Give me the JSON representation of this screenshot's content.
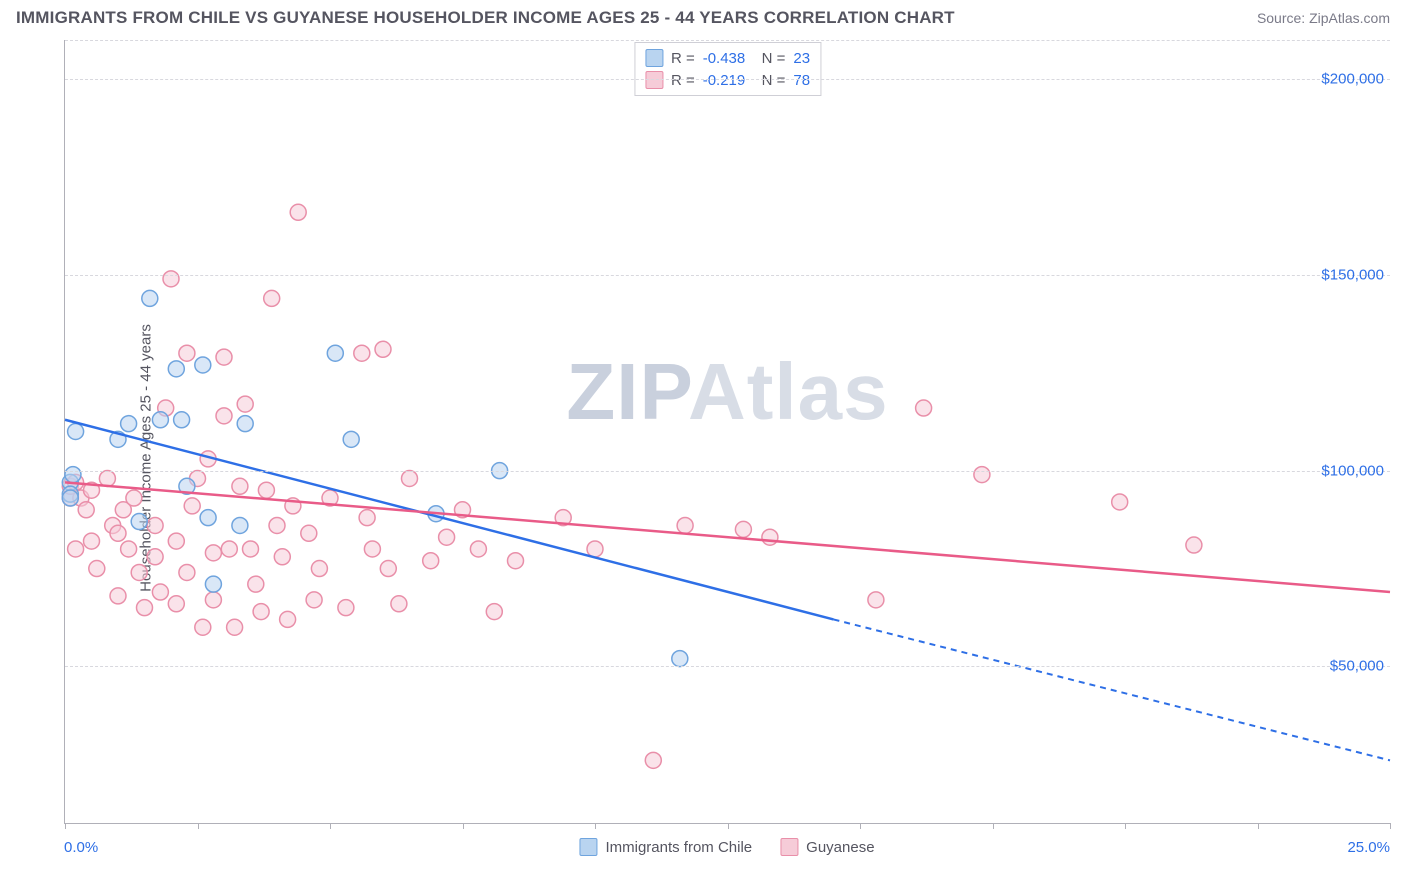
{
  "title": "IMMIGRANTS FROM CHILE VS GUYANESE HOUSEHOLDER INCOME AGES 25 - 44 YEARS CORRELATION CHART",
  "source": "Source: ZipAtlas.com",
  "ylabel": "Householder Income Ages 25 - 44 years",
  "watermark_a": "ZIP",
  "watermark_b": "Atlas",
  "chart": {
    "type": "scatter",
    "xlim": [
      0,
      25
    ],
    "ylim": [
      10000,
      210000
    ],
    "x_tick_positions": [
      0,
      2.5,
      5,
      7.5,
      10,
      12.5,
      15,
      17.5,
      20,
      22.5,
      25
    ],
    "x_tick_labels": {
      "min": "0.0%",
      "max": "25.0%"
    },
    "y_ticks": [
      50000,
      100000,
      150000,
      200000
    ],
    "y_tick_labels": [
      "$50,000",
      "$100,000",
      "$150,000",
      "$200,000"
    ],
    "grid_color": "#d8d8de",
    "background_color": "#ffffff",
    "marker_radius": 8,
    "marker_stroke_width": 1.5,
    "line_width": 2.5,
    "series": [
      {
        "name": "Immigrants from Chile",
        "fill": "#b9d4f0",
        "stroke": "#6fa4de",
        "line_color": "#2e6fe6",
        "R": "-0.438",
        "N": "23",
        "points": [
          [
            0.1,
            97000
          ],
          [
            0.1,
            94000
          ],
          [
            0.1,
            93000
          ],
          [
            0.15,
            99000
          ],
          [
            0.2,
            110000
          ],
          [
            1.0,
            108000
          ],
          [
            1.2,
            112000
          ],
          [
            1.4,
            87000
          ],
          [
            1.6,
            144000
          ],
          [
            1.8,
            113000
          ],
          [
            2.1,
            126000
          ],
          [
            2.2,
            113000
          ],
          [
            2.3,
            96000
          ],
          [
            2.6,
            127000
          ],
          [
            2.7,
            88000
          ],
          [
            2.8,
            71000
          ],
          [
            3.3,
            86000
          ],
          [
            3.4,
            112000
          ],
          [
            5.1,
            130000
          ],
          [
            5.4,
            108000
          ],
          [
            7.0,
            89000
          ],
          [
            8.2,
            100000
          ],
          [
            11.6,
            52000
          ]
        ],
        "regression": {
          "x1": 0,
          "y1": 113000,
          "x2": 14.5,
          "y2": 62000,
          "x_extend": 25,
          "y_extend": 26000
        }
      },
      {
        "name": "Guyanese",
        "fill": "#f6ccd8",
        "stroke": "#e98fa9",
        "line_color": "#e95b88",
        "R": "-0.219",
        "N": "78",
        "points": [
          [
            0.1,
            93000
          ],
          [
            0.1,
            96000
          ],
          [
            0.2,
            97000
          ],
          [
            0.2,
            80000
          ],
          [
            0.3,
            93000
          ],
          [
            0.4,
            90000
          ],
          [
            0.5,
            95000
          ],
          [
            0.5,
            82000
          ],
          [
            0.6,
            75000
          ],
          [
            0.8,
            98000
          ],
          [
            0.9,
            86000
          ],
          [
            1.0,
            84000
          ],
          [
            1.0,
            68000
          ],
          [
            1.1,
            90000
          ],
          [
            1.2,
            80000
          ],
          [
            1.3,
            93000
          ],
          [
            1.4,
            74000
          ],
          [
            1.5,
            65000
          ],
          [
            1.7,
            86000
          ],
          [
            1.7,
            78000
          ],
          [
            1.8,
            69000
          ],
          [
            1.9,
            116000
          ],
          [
            2.0,
            149000
          ],
          [
            2.1,
            82000
          ],
          [
            2.1,
            66000
          ],
          [
            2.3,
            74000
          ],
          [
            2.3,
            130000
          ],
          [
            2.4,
            91000
          ],
          [
            2.5,
            98000
          ],
          [
            2.6,
            60000
          ],
          [
            2.7,
            103000
          ],
          [
            2.8,
            79000
          ],
          [
            2.8,
            67000
          ],
          [
            3.0,
            129000
          ],
          [
            3.0,
            114000
          ],
          [
            3.1,
            80000
          ],
          [
            3.2,
            60000
          ],
          [
            3.3,
            96000
          ],
          [
            3.4,
            117000
          ],
          [
            3.5,
            80000
          ],
          [
            3.6,
            71000
          ],
          [
            3.7,
            64000
          ],
          [
            3.8,
            95000
          ],
          [
            3.9,
            144000
          ],
          [
            4.0,
            86000
          ],
          [
            4.1,
            78000
          ],
          [
            4.2,
            62000
          ],
          [
            4.3,
            91000
          ],
          [
            4.4,
            166000
          ],
          [
            4.6,
            84000
          ],
          [
            4.7,
            67000
          ],
          [
            4.8,
            75000
          ],
          [
            5.0,
            93000
          ],
          [
            5.3,
            65000
          ],
          [
            5.6,
            130000
          ],
          [
            5.7,
            88000
          ],
          [
            5.8,
            80000
          ],
          [
            6.0,
            131000
          ],
          [
            6.1,
            75000
          ],
          [
            6.3,
            66000
          ],
          [
            6.5,
            98000
          ],
          [
            6.9,
            77000
          ],
          [
            7.2,
            83000
          ],
          [
            7.5,
            90000
          ],
          [
            7.8,
            80000
          ],
          [
            8.1,
            64000
          ],
          [
            8.5,
            77000
          ],
          [
            9.4,
            88000
          ],
          [
            10.0,
            80000
          ],
          [
            11.1,
            26000
          ],
          [
            11.7,
            86000
          ],
          [
            12.8,
            85000
          ],
          [
            13.3,
            83000
          ],
          [
            15.3,
            67000
          ],
          [
            16.2,
            116000
          ],
          [
            17.3,
            99000
          ],
          [
            19.9,
            92000
          ],
          [
            21.3,
            81000
          ]
        ],
        "regression": {
          "x1": 0,
          "y1": 97000,
          "x2": 25,
          "y2": 69000,
          "x_extend": 25,
          "y_extend": 69000
        }
      }
    ]
  }
}
